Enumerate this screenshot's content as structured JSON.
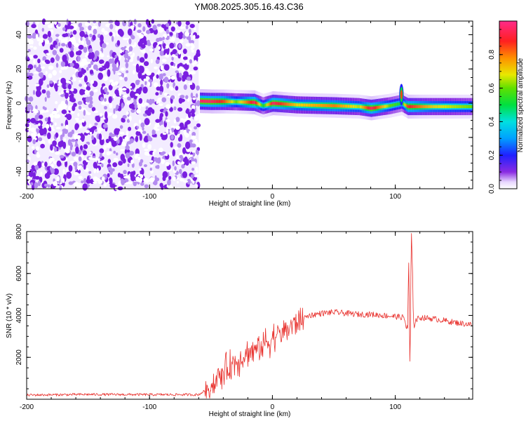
{
  "title": "YM08.2025.305.16.43.C36",
  "chart_data": [
    {
      "type": "heatmap",
      "title": "YM08.2025.305.16.43.C36",
      "xlabel": "Height of straight line (km)",
      "ylabel": "Frequency (Hz)",
      "xlim": [
        -200,
        163
      ],
      "ylim": [
        -50,
        48
      ],
      "xticks": [
        -200,
        -100,
        0,
        100
      ],
      "yticks": [
        -40,
        -20,
        0,
        20,
        40
      ],
      "colorbar": {
        "label": "Normalized spectral amplitude",
        "range": [
          0,
          1
        ],
        "ticks": [
          0.0,
          0.2,
          0.4,
          0.6,
          0.8
        ],
        "tick_labels": [
          "0.0",
          "0.2",
          "0.4",
          "0.6",
          "0.8"
        ]
      },
      "noise_region_x": [
        -200,
        -60
      ],
      "ridge": [
        {
          "x": -59,
          "f": 1.2,
          "a": 0.95
        },
        {
          "x": -50,
          "f": 1.0,
          "a": 0.95
        },
        {
          "x": -40,
          "f": 1.0,
          "a": 0.85
        },
        {
          "x": -30,
          "f": 0.8,
          "a": 0.6
        },
        {
          "x": -15,
          "f": 0.5,
          "a": 0.95
        },
        {
          "x": -8,
          "f": -1.5,
          "a": 0.5
        },
        {
          "x": 0,
          "f": 0.0,
          "a": 0.95
        },
        {
          "x": 20,
          "f": -1.0,
          "a": 0.7
        },
        {
          "x": 50,
          "f": -1.5,
          "a": 0.8
        },
        {
          "x": 70,
          "f": -2.0,
          "a": 0.65
        },
        {
          "x": 80,
          "f": -3.0,
          "a": 0.95
        },
        {
          "x": 95,
          "f": -1.5,
          "a": 0.6
        },
        {
          "x": 105,
          "f": 0.0,
          "a": 0.5
        },
        {
          "x": 110,
          "f": -2.0,
          "a": 0.9
        },
        {
          "x": 130,
          "f": -2.0,
          "a": 0.7
        },
        {
          "x": 163,
          "f": -2.0,
          "a": 0.6
        }
      ]
    },
    {
      "type": "line",
      "xlabel": "Height of straight line (km)",
      "ylabel": "SNR (10 * v/v)",
      "xlim": [
        -200,
        163
      ],
      "ylim": [
        0,
        8000
      ],
      "xticks": [
        -200,
        -100,
        0,
        100
      ],
      "yticks": [
        2000,
        4000,
        6000,
        8000
      ],
      "series": [
        {
          "name": "SNR",
          "color": "#e8302c",
          "x": [
            -200,
            -150,
            -100,
            -60,
            -50,
            -40,
            -30,
            -20,
            -10,
            0,
            10,
            20,
            30,
            40,
            50,
            60,
            70,
            80,
            90,
            100,
            107,
            110,
            111,
            112,
            113,
            115,
            120,
            130,
            140,
            150,
            163
          ],
          "y": [
            200,
            230,
            220,
            220,
            600,
            1300,
            1800,
            2200,
            2500,
            2900,
            3300,
            3700,
            4000,
            4100,
            4150,
            4100,
            4050,
            4050,
            4000,
            3950,
            3900,
            3300,
            6400,
            1000,
            8000,
            3700,
            3900,
            3850,
            3750,
            3650,
            3550
          ]
        }
      ]
    }
  ]
}
